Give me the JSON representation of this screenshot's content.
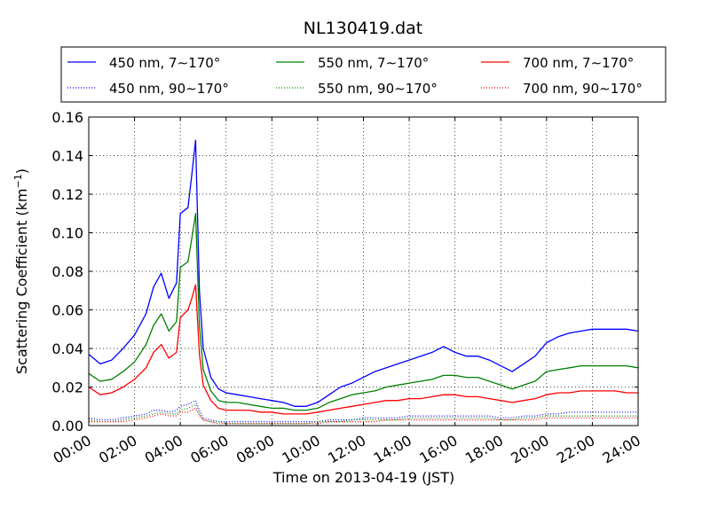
{
  "chart_data": {
    "type": "line",
    "title": "NL130419.dat",
    "xlabel": "Time on 2013-04-19 (JST)",
    "ylabel": "Scattering Coefficient (km",
    "ylabel_sup": "−1",
    "ylabel_close": ")",
    "xlim": [
      "00:00",
      "24:00"
    ],
    "ylim": [
      0,
      0.16
    ],
    "grid": true,
    "legend_position": "top",
    "x_ticks": [
      "00:00",
      "02:00",
      "04:00",
      "06:00",
      "08:00",
      "10:00",
      "12:00",
      "14:00",
      "16:00",
      "18:00",
      "20:00",
      "22:00",
      "24:00"
    ],
    "y_ticks": [
      "0.00",
      "0.02",
      "0.04",
      "0.06",
      "0.08",
      "0.10",
      "0.12",
      "0.14",
      "0.16"
    ],
    "x": [
      "00:00",
      "00:30",
      "01:00",
      "01:30",
      "02:00",
      "02:30",
      "02:50",
      "03:10",
      "03:30",
      "03:50",
      "04:00",
      "04:20",
      "04:30",
      "04:40",
      "04:50",
      "05:00",
      "05:20",
      "05:40",
      "06:00",
      "06:30",
      "07:00",
      "07:30",
      "08:00",
      "08:30",
      "09:00",
      "09:30",
      "10:00",
      "10:30",
      "11:00",
      "11:30",
      "12:00",
      "12:30",
      "13:00",
      "13:30",
      "14:00",
      "14:30",
      "15:00",
      "15:30",
      "16:00",
      "16:30",
      "17:00",
      "17:30",
      "18:00",
      "18:30",
      "19:00",
      "19:30",
      "20:00",
      "20:30",
      "21:00",
      "21:30",
      "22:00",
      "22:30",
      "23:00",
      "23:30",
      "24:00"
    ],
    "series": [
      {
        "name": "450 nm, 7∼170°",
        "color": "#0000ff",
        "style": "solid",
        "values": [
          0.037,
          0.032,
          0.034,
          0.04,
          0.047,
          0.058,
          0.072,
          0.079,
          0.066,
          0.074,
          0.11,
          0.113,
          0.13,
          0.148,
          0.07,
          0.04,
          0.025,
          0.019,
          0.017,
          0.016,
          0.015,
          0.014,
          0.013,
          0.012,
          0.01,
          0.01,
          0.012,
          0.016,
          0.02,
          0.022,
          0.025,
          0.028,
          0.03,
          0.032,
          0.034,
          0.036,
          0.038,
          0.041,
          0.038,
          0.036,
          0.036,
          0.034,
          0.031,
          0.028,
          0.032,
          0.036,
          0.043,
          0.046,
          0.048,
          0.049,
          0.05,
          0.05,
          0.05,
          0.05,
          0.049
        ]
      },
      {
        "name": "550 nm, 7∼170°",
        "color": "#008000",
        "style": "solid",
        "values": [
          0.027,
          0.023,
          0.024,
          0.028,
          0.033,
          0.042,
          0.052,
          0.058,
          0.049,
          0.054,
          0.082,
          0.085,
          0.097,
          0.11,
          0.052,
          0.029,
          0.018,
          0.013,
          0.012,
          0.012,
          0.011,
          0.01,
          0.009,
          0.009,
          0.008,
          0.008,
          0.009,
          0.012,
          0.014,
          0.016,
          0.017,
          0.018,
          0.02,
          0.021,
          0.022,
          0.023,
          0.024,
          0.026,
          0.026,
          0.025,
          0.025,
          0.023,
          0.021,
          0.019,
          0.021,
          0.023,
          0.028,
          0.029,
          0.03,
          0.031,
          0.031,
          0.031,
          0.031,
          0.031,
          0.03
        ]
      },
      {
        "name": "700 nm, 7∼170°",
        "color": "#ff0000",
        "style": "solid",
        "values": [
          0.02,
          0.016,
          0.017,
          0.02,
          0.024,
          0.03,
          0.038,
          0.042,
          0.035,
          0.038,
          0.056,
          0.06,
          0.066,
          0.073,
          0.037,
          0.021,
          0.013,
          0.009,
          0.008,
          0.008,
          0.008,
          0.007,
          0.007,
          0.006,
          0.006,
          0.006,
          0.007,
          0.008,
          0.009,
          0.01,
          0.011,
          0.012,
          0.013,
          0.013,
          0.014,
          0.014,
          0.015,
          0.016,
          0.016,
          0.015,
          0.015,
          0.014,
          0.013,
          0.012,
          0.013,
          0.014,
          0.016,
          0.017,
          0.017,
          0.018,
          0.018,
          0.018,
          0.018,
          0.017,
          0.017
        ]
      },
      {
        "name": "450 nm, 90∼170°",
        "color": "#0000ff",
        "style": "dotted",
        "values": [
          0.004,
          0.003,
          0.003,
          0.004,
          0.005,
          0.006,
          0.008,
          0.008,
          0.007,
          0.008,
          0.01,
          0.011,
          0.012,
          0.013,
          0.008,
          0.004,
          0.003,
          0.002,
          0.002,
          0.002,
          0.002,
          0.002,
          0.002,
          0.002,
          0.002,
          0.002,
          0.002,
          0.003,
          0.003,
          0.003,
          0.004,
          0.004,
          0.004,
          0.004,
          0.005,
          0.005,
          0.005,
          0.005,
          0.005,
          0.005,
          0.005,
          0.005,
          0.004,
          0.004,
          0.005,
          0.005,
          0.006,
          0.006,
          0.007,
          0.007,
          0.007,
          0.007,
          0.007,
          0.007,
          0.007
        ]
      },
      {
        "name": "550 nm, 90∼170°",
        "color": "#008000",
        "style": "dotted",
        "values": [
          0.003,
          0.002,
          0.002,
          0.003,
          0.004,
          0.005,
          0.006,
          0.007,
          0.006,
          0.006,
          0.008,
          0.009,
          0.01,
          0.011,
          0.006,
          0.003,
          0.002,
          0.002,
          0.001,
          0.001,
          0.001,
          0.001,
          0.001,
          0.001,
          0.001,
          0.001,
          0.002,
          0.002,
          0.002,
          0.003,
          0.003,
          0.003,
          0.003,
          0.003,
          0.004,
          0.004,
          0.004,
          0.004,
          0.004,
          0.004,
          0.004,
          0.004,
          0.003,
          0.003,
          0.004,
          0.004,
          0.005,
          0.005,
          0.005,
          0.005,
          0.005,
          0.005,
          0.005,
          0.005,
          0.005
        ]
      },
      {
        "name": "700 nm, 90∼170°",
        "color": "#ff0000",
        "style": "dotted",
        "values": [
          0.002,
          0.002,
          0.002,
          0.002,
          0.003,
          0.004,
          0.005,
          0.006,
          0.005,
          0.005,
          0.007,
          0.007,
          0.008,
          0.009,
          0.005,
          0.003,
          0.002,
          0.001,
          0.001,
          0.001,
          0.001,
          0.001,
          0.001,
          0.001,
          0.001,
          0.001,
          0.001,
          0.002,
          0.002,
          0.002,
          0.002,
          0.002,
          0.003,
          0.003,
          0.003,
          0.003,
          0.003,
          0.003,
          0.003,
          0.003,
          0.003,
          0.003,
          0.003,
          0.003,
          0.003,
          0.003,
          0.004,
          0.004,
          0.004,
          0.004,
          0.004,
          0.004,
          0.004,
          0.004,
          0.004
        ]
      }
    ],
    "legend_order": [
      0,
      1,
      2,
      3,
      4,
      5
    ]
  }
}
